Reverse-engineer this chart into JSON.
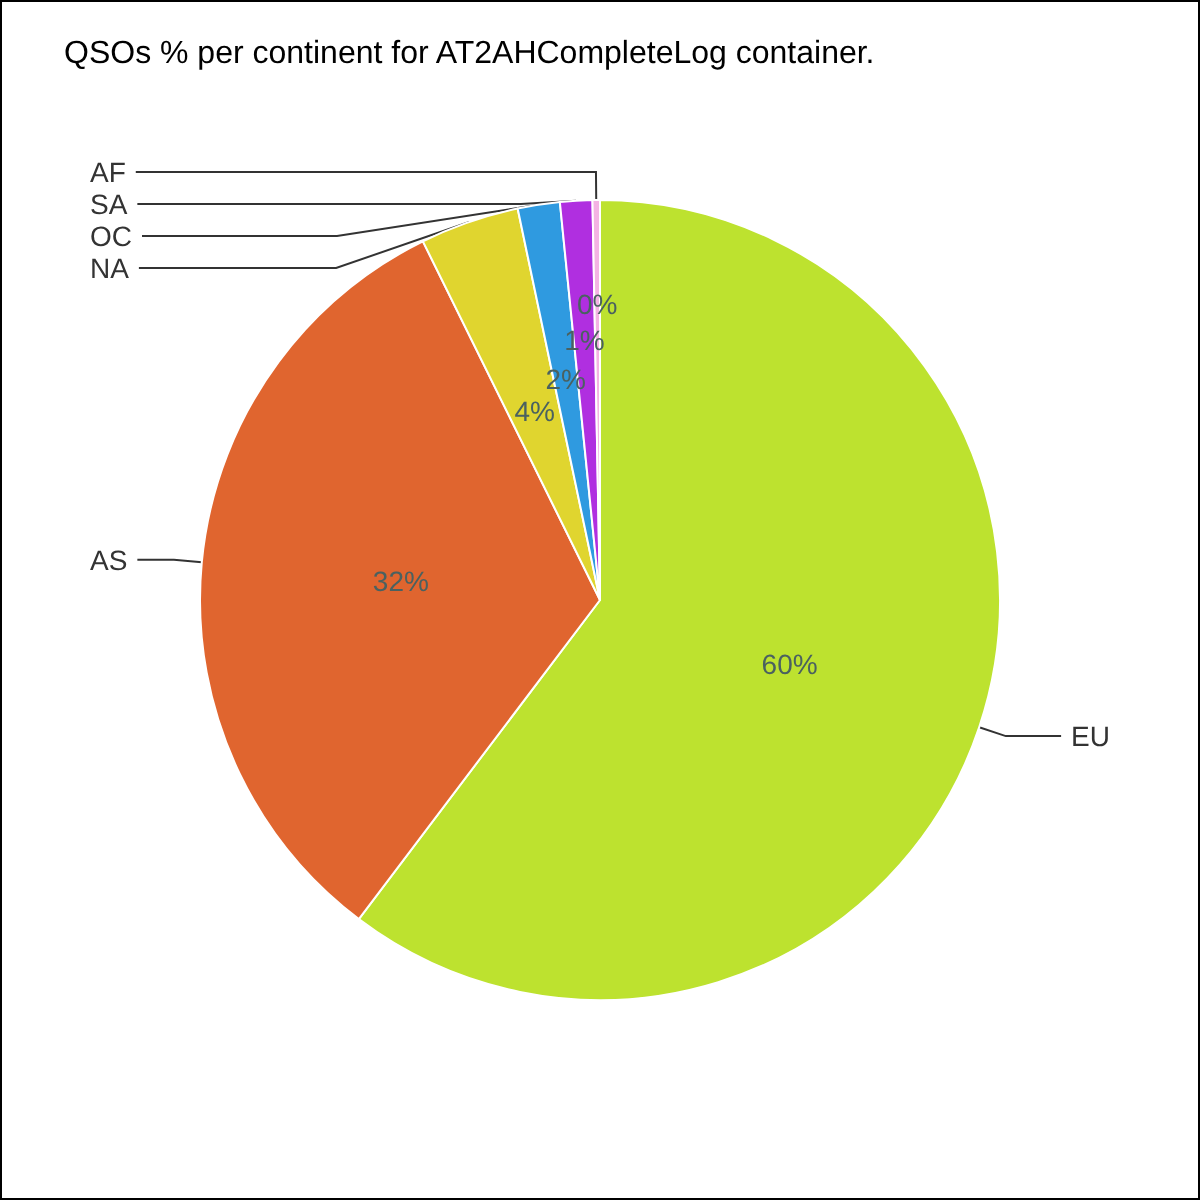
{
  "chart_data": {
    "type": "pie",
    "title": "QSOs % per continent for AT2AHCompleteLog container.",
    "categories": [
      "EU",
      "AS",
      "NA",
      "OC",
      "SA",
      "AF"
    ],
    "values": [
      60.3,
      32.4,
      4.0,
      1.7,
      1.3,
      0.3
    ],
    "value_labels": [
      "60%",
      "32%",
      "4%",
      "2%",
      "1%",
      "0%"
    ],
    "colors": [
      "#bde22f",
      "#e0652f",
      "#e0d52f",
      "#2f9ae0",
      "#b02fe0",
      "#f4b3e3"
    ]
  }
}
